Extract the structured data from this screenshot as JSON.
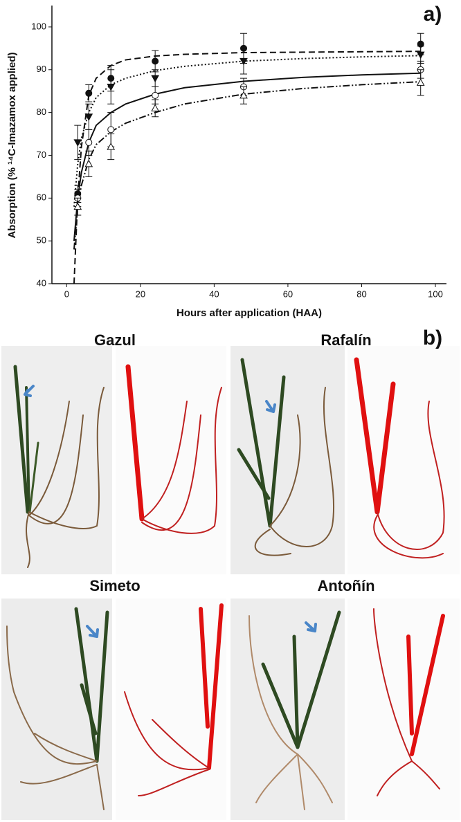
{
  "chart_data": {
    "type": "scatter",
    "annotation": "a)",
    "xlabel": "Hours after application (HAA)",
    "ylabel": "Absorption (% ¹⁴C-Imazamox applied)",
    "x": [
      3,
      6,
      12,
      24,
      48,
      96
    ],
    "fit_x": [
      2,
      3,
      4,
      6,
      8,
      12,
      16,
      24,
      32,
      48,
      64,
      80,
      96
    ],
    "xlim": [
      -4,
      103
    ],
    "xticks": [
      0,
      20,
      40,
      60,
      80,
      100
    ],
    "ylim": [
      40,
      105
    ],
    "yticks": [
      40,
      50,
      60,
      70,
      80,
      90,
      100
    ],
    "series": [
      {
        "color": "#111111",
        "marker": "circle",
        "filled": true,
        "dash": "9,5",
        "values": [
          61,
          84.5,
          88,
          92,
          95,
          96
        ],
        "errors": [
          2,
          2,
          3,
          2.5,
          3.5,
          2.5
        ],
        "fit": [
          40,
          60,
          72,
          84,
          88,
          91,
          92.3,
          93.2,
          93.6,
          94,
          94.1,
          94.2,
          94.3
        ]
      },
      {
        "color": "#111111",
        "marker": "triangle-down",
        "filled": true,
        "dash": "2,3",
        "values": [
          73,
          79,
          86,
          88,
          92,
          93.5
        ],
        "errors": [
          4,
          3,
          4,
          2,
          3,
          2
        ],
        "fit": [
          58,
          68,
          74,
          80,
          83.5,
          86.5,
          88,
          89.8,
          90.8,
          92,
          92.6,
          93,
          93.3
        ]
      },
      {
        "color": "#111111",
        "marker": "circle",
        "filled": false,
        "dash": "none",
        "values": [
          60,
          73,
          76,
          84,
          86,
          90
        ],
        "errors": [
          2,
          3,
          4,
          2,
          2,
          2
        ],
        "fit": [
          50,
          60,
          66,
          73,
          77,
          80,
          82,
          84.3,
          85.8,
          87.3,
          88.2,
          88.8,
          89.2
        ]
      },
      {
        "color": "#111111",
        "marker": "triangle-up",
        "filled": false,
        "dash": "10,3,2,3,2,3",
        "values": [
          58,
          68,
          72,
          81,
          84,
          87
        ],
        "errors": [
          2,
          3,
          3,
          2,
          2,
          3
        ],
        "fit": [
          48,
          58,
          63,
          69,
          72.5,
          75.5,
          77.5,
          80,
          82,
          84.3,
          85.6,
          86.5,
          87.2
        ]
      }
    ]
  },
  "photos": {
    "label": "b)",
    "titles": [
      "Gazul",
      "Rafalín",
      "Simeto",
      "Antoñín"
    ]
  }
}
